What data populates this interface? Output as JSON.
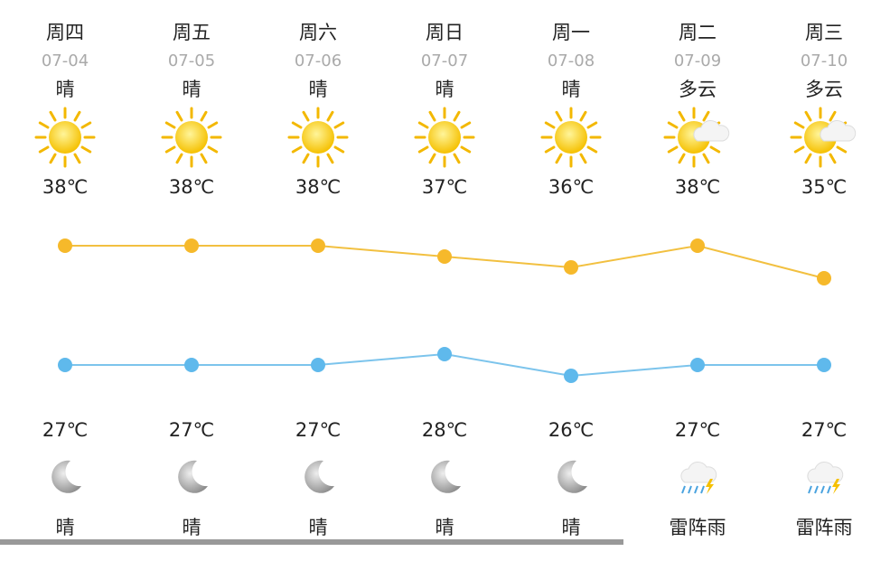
{
  "days": [
    {
      "weekday": "周四",
      "date": "07-04",
      "day": "晴",
      "high": {
        "value": 38,
        "label": "38℃"
      },
      "low": {
        "value": 27,
        "label": "27℃"
      },
      "night": "晴"
    },
    {
      "weekday": "周五",
      "date": "07-05",
      "day": "晴",
      "high": {
        "value": 38,
        "label": "38℃"
      },
      "low": {
        "value": 27,
        "label": "27℃"
      },
      "night": "晴"
    },
    {
      "weekday": "周六",
      "date": "07-06",
      "day": "晴",
      "high": {
        "value": 38,
        "label": "38℃"
      },
      "low": {
        "value": 27,
        "label": "27℃"
      },
      "night": "晴"
    },
    {
      "weekday": "周日",
      "date": "07-07",
      "day": "晴",
      "high": {
        "value": 37,
        "label": "37℃"
      },
      "low": {
        "value": 28,
        "label": "28℃"
      },
      "night": "晴"
    },
    {
      "weekday": "周一",
      "date": "07-08",
      "day": "晴",
      "high": {
        "value": 36,
        "label": "36℃"
      },
      "low": {
        "value": 26,
        "label": "26℃"
      },
      "night": "晴"
    },
    {
      "weekday": "周二",
      "date": "07-09",
      "day": "多云",
      "high": {
        "value": 38,
        "label": "38℃"
      },
      "low": {
        "value": 27,
        "label": "27℃"
      },
      "night": "雷阵雨"
    },
    {
      "weekday": "周三",
      "date": "07-10",
      "day": "多云",
      "high": {
        "value": 35,
        "label": "35℃"
      },
      "low": {
        "value": 27,
        "label": "27℃"
      },
      "night": "雷阵雨"
    }
  ]
}
